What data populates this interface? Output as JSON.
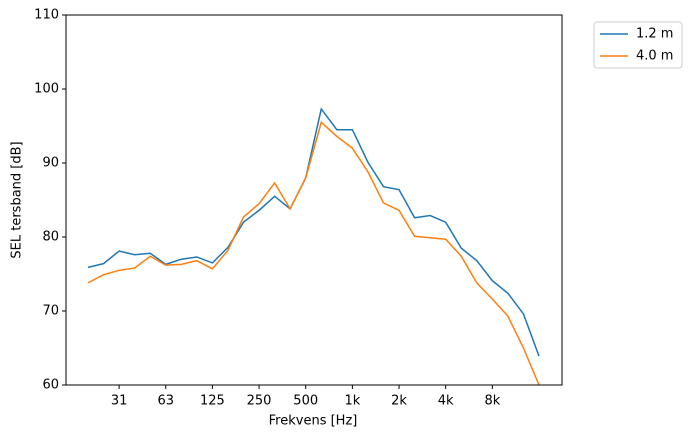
{
  "chart_data": {
    "type": "line",
    "xlabel": "Frekvens [Hz]",
    "ylabel": "SEL tersband [dB]",
    "categories": [
      null,
      null,
      "31",
      null,
      null,
      "63",
      null,
      null,
      "125",
      null,
      null,
      "250",
      null,
      null,
      "500",
      null,
      null,
      "1k",
      null,
      null,
      "2k",
      null,
      null,
      "4k",
      null,
      null,
      "8k",
      null,
      null,
      null
    ],
    "series": [
      {
        "name": "1.2 m",
        "color": "#1f77b4",
        "values": [
          75.9,
          76.4,
          78.1,
          77.6,
          77.8,
          76.3,
          77.0,
          77.3,
          76.5,
          78.6,
          82.0,
          83.6,
          85.5,
          83.8,
          88.0,
          97.3,
          94.5,
          94.5,
          90.1,
          86.8,
          86.4,
          82.6,
          82.9,
          82.0,
          78.5,
          76.8,
          74.1,
          72.4,
          69.6,
          63.9
        ]
      },
      {
        "name": "4.0 m",
        "color": "#ff7f0e",
        "values": [
          73.8,
          74.9,
          75.5,
          75.8,
          77.4,
          76.2,
          76.3,
          76.8,
          75.7,
          78.2,
          82.7,
          84.5,
          87.3,
          83.8,
          88.0,
          95.5,
          93.6,
          92.0,
          88.8,
          84.6,
          83.6,
          80.1,
          79.9,
          79.7,
          77.4,
          73.8,
          71.6,
          69.3,
          65.0,
          60.0
        ]
      }
    ],
    "ylim": [
      60,
      110
    ],
    "yticks": [
      60,
      70,
      80,
      90,
      100,
      110
    ],
    "grid": false,
    "legend": "outside upper right"
  }
}
